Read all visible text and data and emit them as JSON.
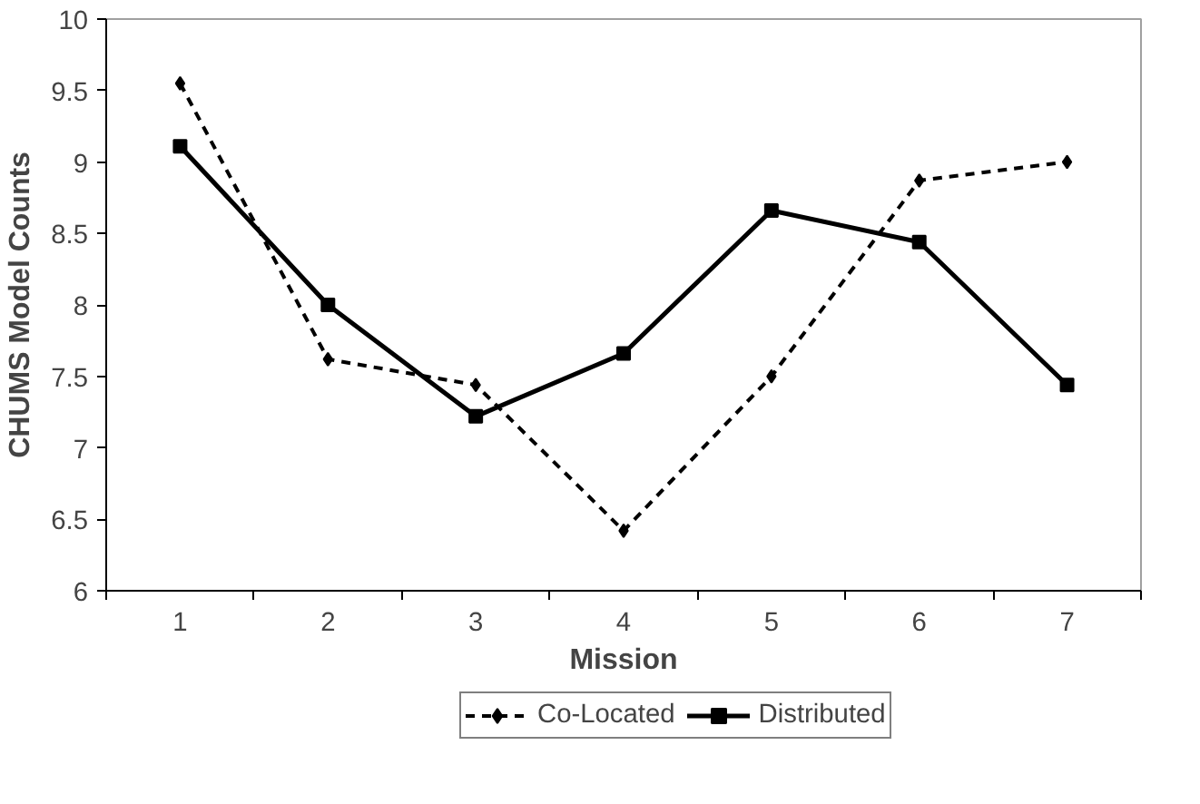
{
  "chart_data": {
    "type": "line",
    "xlabel": "Mission",
    "ylabel": "CHUMS Model Counts",
    "categories": [
      "1",
      "2",
      "3",
      "4",
      "5",
      "6",
      "7"
    ],
    "series": [
      {
        "name": "Co-Located",
        "color": "#000000",
        "values": [
          9.55,
          7.62,
          7.44,
          6.42,
          7.5,
          8.87,
          9.0
        ],
        "marker": "diamond",
        "line_style": "dashed"
      },
      {
        "name": "Distributed",
        "color": "#000000",
        "values": [
          9.11,
          8.0,
          7.22,
          7.66,
          8.66,
          8.44,
          7.44
        ],
        "marker": "square",
        "line_style": "solid"
      }
    ],
    "ylim": [
      6,
      10
    ],
    "yticks": [
      6,
      6.5,
      7,
      7.5,
      8,
      8.5,
      9,
      9.5,
      10
    ],
    "grid": false,
    "legend": "bottom"
  }
}
